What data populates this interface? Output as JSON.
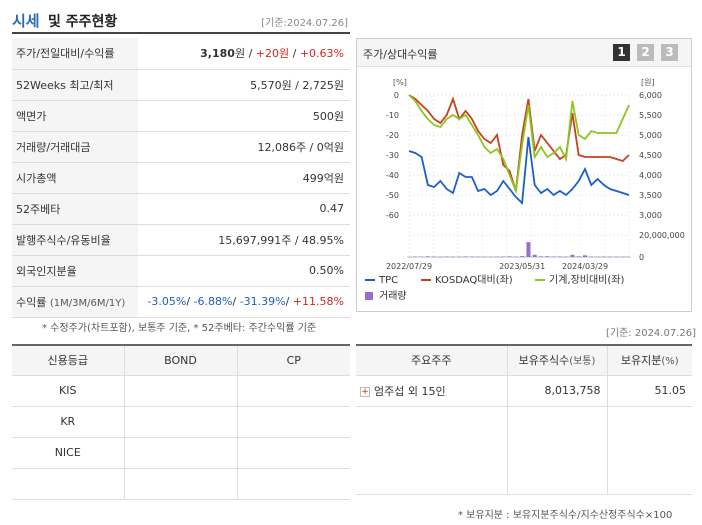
{
  "header": {
    "title_a": "시세",
    "title_b": "및 주주현황",
    "base_date": "[기준:2024.07.26]"
  },
  "quote": {
    "rows": [
      {
        "label": "주가/전일대비/수익률",
        "price": "3,180",
        "unit": "원",
        "sep1": " / ",
        "change": "+20원",
        "sep2": " / ",
        "rate": "+0.63%"
      },
      {
        "label": "52Weeks 최고/최저",
        "value": "5,570원 / 2,725원"
      },
      {
        "label": "액면가",
        "value": "500원"
      },
      {
        "label": "거래량/거래대금",
        "value": "12,086주 / 0억원"
      },
      {
        "label": "시가총액",
        "value": "499억원"
      },
      {
        "label": "52주베타",
        "value": "0.47"
      },
      {
        "label": "발행주식수/유동비율",
        "value": "15,697,991주 / 48.95%"
      },
      {
        "label": "외국인지분율",
        "value": "0.50%"
      }
    ],
    "returns": {
      "label": "수익률",
      "sublabel": "(1M/3M/6M/1Y)",
      "values": [
        "-3.05%",
        "-6.88%",
        "-31.39%",
        "+11.58%"
      ]
    },
    "note": "* 수정주가(차트포함), 보통주 기준, * 52주베타: 주간수익률 기준"
  },
  "chart_panel": {
    "title": "주가/상대수익률",
    "period_buttons": [
      "1",
      "2",
      "3"
    ],
    "active_button": 0,
    "active_color": "#333333",
    "inactive_color": "#bbbbbb"
  },
  "chart_data": {
    "type": "line",
    "left_axis_unit": "[%]",
    "right_axis_unit": "[원]",
    "left_ticks": [
      "0",
      "-10",
      "-20",
      "-30",
      "-40",
      "-50",
      "-60"
    ],
    "left_range": [
      -60,
      0
    ],
    "right_ticks": [
      "6,000",
      "5,500",
      "5,000",
      "4,500",
      "4,000",
      "3,500",
      "3,000"
    ],
    "right_range": [
      3000,
      6000
    ],
    "volume_ticks": [
      "20,000,000",
      "0"
    ],
    "volume_range": [
      0,
      20000000
    ],
    "x_ticks": [
      "2022/07/29",
      "2023/05/31",
      "2024/03/29"
    ],
    "x_tick_positions": [
      0,
      18,
      28
    ],
    "n_points": 36,
    "series": [
      {
        "name": "TPC",
        "axis": "right",
        "color": "#1d5fc4",
        "values": [
          4600,
          4550,
          4450,
          3750,
          3700,
          3850,
          3650,
          3550,
          4050,
          3950,
          3950,
          3600,
          3650,
          3500,
          3600,
          3850,
          3650,
          3450,
          3300,
          4950,
          3750,
          3550,
          3650,
          3500,
          3600,
          3500,
          3650,
          3850,
          4150,
          3750,
          3900,
          3750,
          3650,
          3600,
          3550,
          3500
        ]
      },
      {
        "name": "KOSDAQ대비(좌)",
        "axis": "left",
        "color": "#c9401c",
        "values": [
          0,
          -2,
          -5,
          -8,
          -12,
          -14,
          -10,
          -2,
          -12,
          -8,
          -12,
          -18,
          -22,
          -24,
          -20,
          -35,
          -38,
          -48,
          -20,
          -2,
          -28,
          -20,
          -24,
          -28,
          -32,
          -30,
          -9,
          -30,
          -31,
          -31,
          -31,
          -31,
          -31,
          -32,
          -33,
          -30
        ]
      },
      {
        "name": "기계,장비대비(좌)",
        "axis": "left",
        "color": "#8dc41e",
        "values": [
          0,
          -3,
          -8,
          -12,
          -15,
          -16,
          -12,
          -10,
          -12,
          -10,
          -15,
          -20,
          -26,
          -29,
          -27,
          -32,
          -40,
          -48,
          -25,
          -5,
          -31,
          -26,
          -31,
          -29,
          -26,
          -32,
          -3,
          -20,
          -22,
          -18,
          -19,
          -19,
          -19,
          -19,
          -12,
          -5
        ]
      },
      {
        "name": "거래량",
        "axis": "volume",
        "color": "#9a6fc9",
        "values": [
          200000,
          400000,
          300000,
          600000,
          300000,
          200000,
          400000,
          300000,
          200000,
          500000,
          400000,
          300000,
          300000,
          200000,
          300000,
          400000,
          600000,
          300000,
          800000,
          13500000,
          2000000,
          600000,
          700000,
          400000,
          500000,
          300000,
          2000000,
          600000,
          1500000,
          400000,
          300000,
          300000,
          200000,
          300000,
          300000,
          200000
        ]
      }
    ]
  },
  "credit": {
    "headers": [
      "신용등급",
      "BOND",
      "CP"
    ],
    "rows": [
      [
        "KIS",
        "",
        ""
      ],
      [
        "KR",
        "",
        ""
      ],
      [
        "NICE",
        "",
        ""
      ],
      [
        "",
        "",
        ""
      ]
    ]
  },
  "shareholders": {
    "base_date": "[기준: 2024.07.26]",
    "headers": [
      "주요주주",
      "보유주식수",
      "(보통)",
      "보유지분",
      "(%)"
    ],
    "rows": [
      {
        "name": "엄주섭 외 15인",
        "shares": "8,013,758",
        "ratio": "51.05"
      }
    ],
    "note": "* 보유지분 : 보유지분주식수/지수산정주식수×100"
  }
}
